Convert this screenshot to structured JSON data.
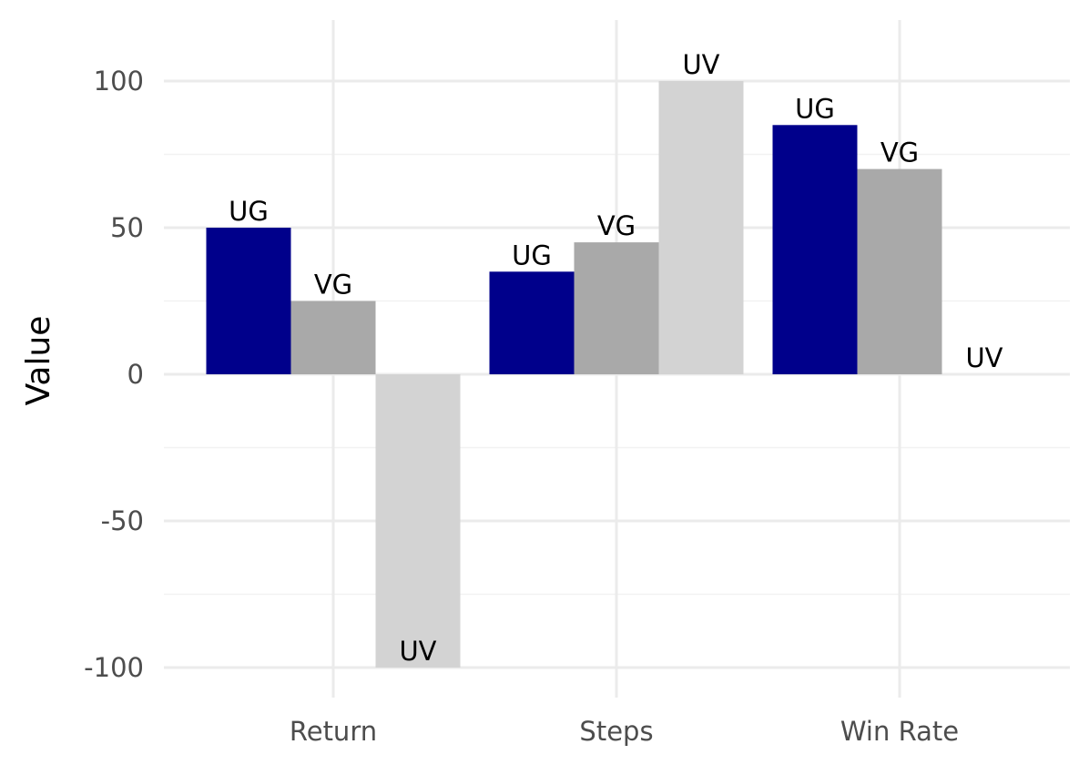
{
  "chart_data": {
    "type": "bar",
    "title": "",
    "xlabel": "",
    "ylabel": "Value",
    "categories": [
      "Return",
      "Steps",
      "Win Rate"
    ],
    "series": [
      {
        "name": "UG",
        "values": [
          50,
          35,
          85
        ],
        "color": "#00008b"
      },
      {
        "name": "VG",
        "values": [
          25,
          45,
          70
        ],
        "color": "#a9a9a9"
      },
      {
        "name": "UV",
        "values": [
          -100,
          100,
          0
        ],
        "color": "#d3d3d3"
      }
    ],
    "ylim": [
      -100,
      100
    ],
    "yticks": [
      "-100",
      "-50",
      "0",
      "50",
      "100"
    ],
    "grid": true,
    "legend": "none",
    "bar_labels": "series-name"
  }
}
